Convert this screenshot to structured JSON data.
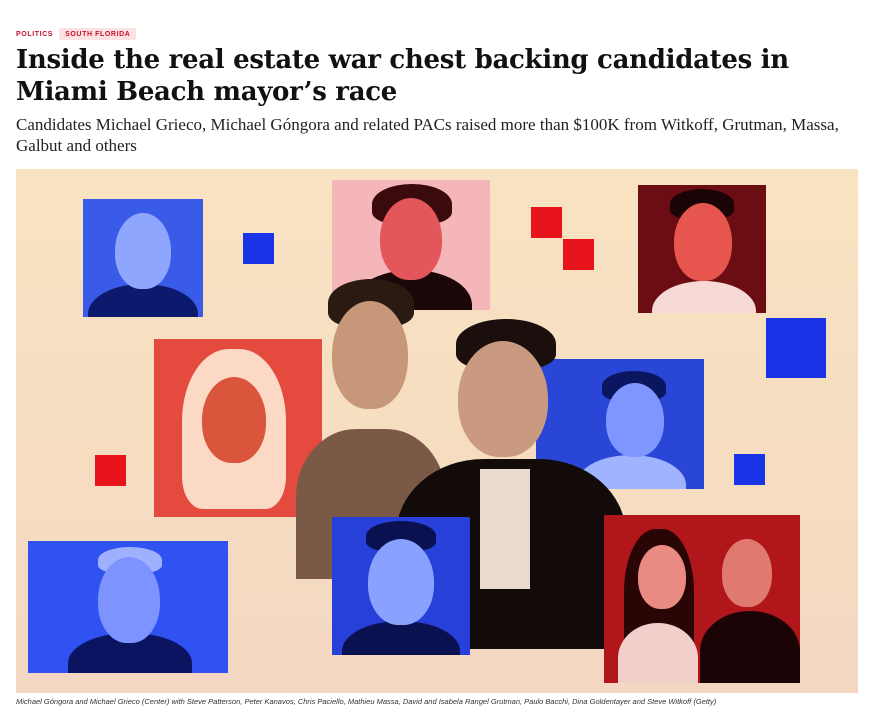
{
  "article": {
    "section_tag": "POLITICS",
    "region_tag": "SOUTH FLORIDA",
    "headline": "Inside the real estate war chest backing candidates in Miami Beach mayor’s race",
    "dek": "Candidates Michael Grieco, Michael Góngora and related PACs raised more than $100K from Witkoff, Grutman, Massa, Galbut and others",
    "caption": "Michael Góngora and Michael Grieco (Center) with Steve Patterson, Peter Kanavos, Chris Paciello, Mathieu Massa, David and Isabela Rangel Grutman, Paulo Bacchi, Dina Goldentayer and Steve Witkoff (Getty)"
  },
  "colors": {
    "accent_red": "#c8102e",
    "tag_bg": "#fde2e2",
    "collage_blue": "#1f3fe0",
    "collage_red": "#e21d24"
  }
}
